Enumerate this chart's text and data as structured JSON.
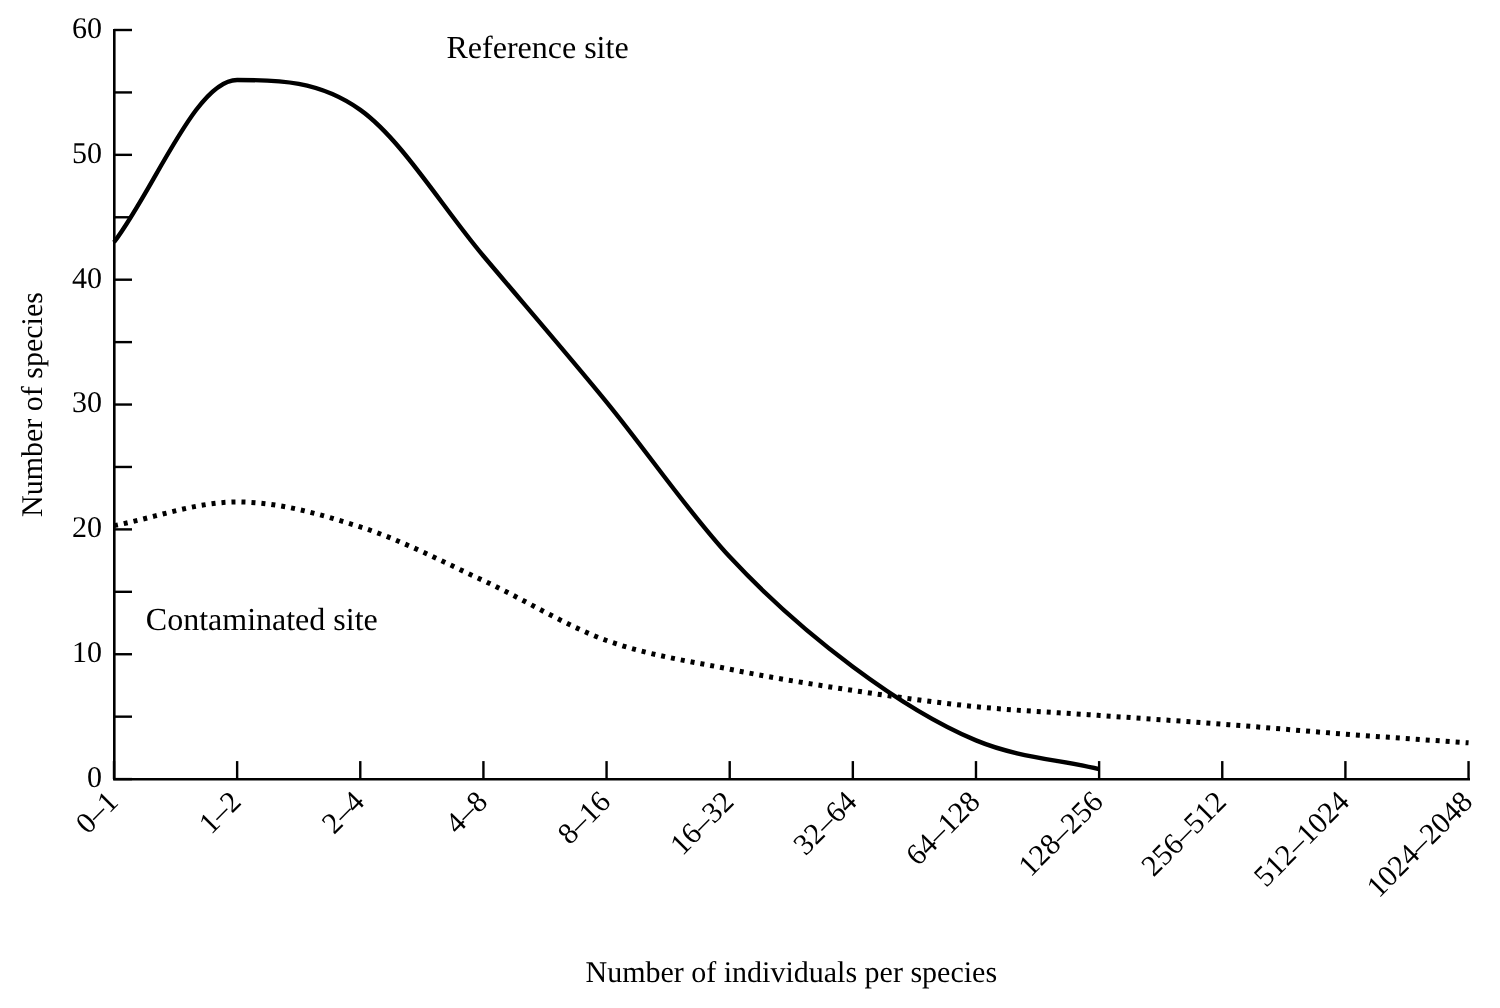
{
  "chart_data": {
    "type": "line",
    "xlabel": "Number of individuals per species",
    "ylabel": "Number of species",
    "categories": [
      "0–1",
      "1–2",
      "2–4",
      "4–8",
      "8–16",
      "16–32",
      "32–64",
      "64–128",
      "128–256",
      "256–512",
      "512–1024",
      "1024–2048"
    ],
    "ylim": [
      0,
      60
    ],
    "yticks": [
      0,
      {
        "value": 5,
        "label": null
      },
      10,
      {
        "value": 15,
        "label": null
      },
      20,
      {
        "value": 25,
        "label": null
      },
      30,
      {
        "value": 35,
        "label": null
      },
      40,
      {
        "value": 45,
        "label": null
      },
      50,
      {
        "value": 55,
        "label": null
      },
      60
    ],
    "grid": false,
    "legend": false,
    "marker": "none",
    "series": [
      {
        "name": "Reference site",
        "color": "#000000",
        "line_style": "solid",
        "values": [
          43,
          56,
          53.6,
          41.9,
          30.2,
          17.8,
          9,
          3.1,
          0.8,
          null,
          null,
          null
        ]
      },
      {
        "name": "Contaminated site",
        "color": "#000000",
        "line_style": "dotted",
        "values": [
          20.3,
          22.2,
          20.2,
          15.9,
          11.1,
          8.8,
          7.1,
          5.8,
          5.1,
          4.4,
          3.6,
          2.9
        ]
      }
    ]
  }
}
